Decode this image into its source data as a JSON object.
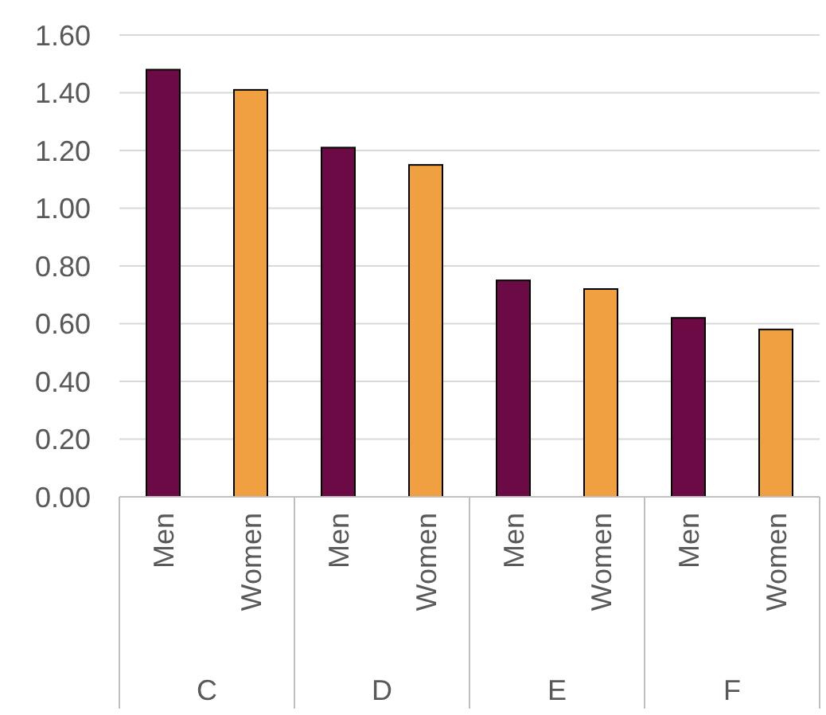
{
  "chart_data": {
    "type": "bar",
    "categories": [
      "C",
      "D",
      "E",
      "F"
    ],
    "series": [
      {
        "name": "Men",
        "color": "#6b0a45",
        "values": [
          1.48,
          1.21,
          0.75,
          0.62
        ]
      },
      {
        "name": "Women",
        "color": "#f0a041",
        "values": [
          1.41,
          1.15,
          0.72,
          0.58
        ]
      }
    ],
    "ylim": [
      0,
      1.6
    ],
    "yticks": [
      {
        "value": 0,
        "label": "0.00"
      },
      {
        "value": 0.2,
        "label": "0.20"
      },
      {
        "value": 0.4,
        "label": "0.40"
      },
      {
        "value": 0.6,
        "label": "0.60"
      },
      {
        "value": 0.8,
        "label": "0.80"
      },
      {
        "value": 1,
        "label": "1.00"
      },
      {
        "value": 1.2,
        "label": "1.20"
      },
      {
        "value": 1.4,
        "label": "1.40"
      },
      {
        "value": 1.6,
        "label": "1.60"
      }
    ],
    "grid": "y"
  }
}
